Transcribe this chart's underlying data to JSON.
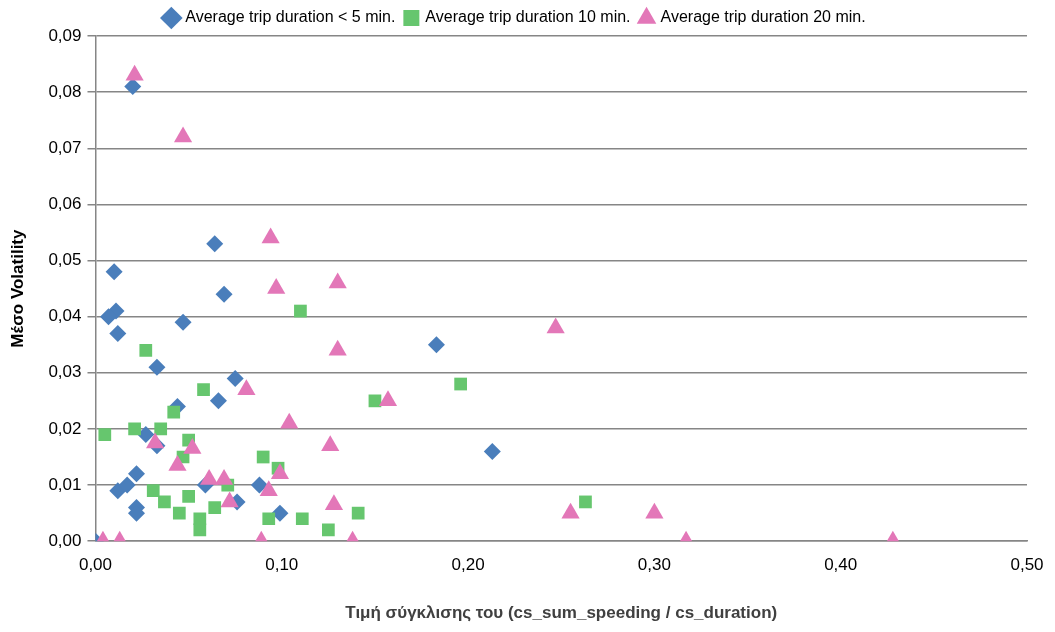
{
  "chart_data": {
    "type": "scatter",
    "xlabel": "Τιμή σύγκλισης του (cs_sum_speeding / cs_duration)",
    "ylabel": "Μέσο Volatility",
    "xlim": [
      0,
      0.5
    ],
    "ylim": [
      0,
      0.09
    ],
    "xticks": [
      {
        "value": 0,
        "label": "0,00"
      },
      {
        "value": 0.1,
        "label": "0,10"
      },
      {
        "value": 0.2,
        "label": "0,20"
      },
      {
        "value": 0.3,
        "label": "0,30"
      },
      {
        "value": 0.4,
        "label": "0,40"
      },
      {
        "value": 0.5,
        "label": "0,50"
      }
    ],
    "yticks": [
      {
        "value": 0,
        "label": "0,00"
      },
      {
        "value": 0.01,
        "label": "0,01"
      },
      {
        "value": 0.02,
        "label": "0,02"
      },
      {
        "value": 0.03,
        "label": "0,03"
      },
      {
        "value": 0.04,
        "label": "0,04"
      },
      {
        "value": 0.05,
        "label": "0,05"
      },
      {
        "value": 0.06,
        "label": "0,06"
      },
      {
        "value": 0.07,
        "label": "0,07"
      },
      {
        "value": 0.08,
        "label": "0,08"
      },
      {
        "value": 0.09,
        "label": "0,09"
      }
    ],
    "grid": "y",
    "legend": "top",
    "series": [
      {
        "name": "Average trip duration < 5 min.",
        "color": "#4a7ebb",
        "marker": "diamond",
        "x": [
          0,
          0.02,
          0.01,
          0.011,
          0.007,
          0.012,
          0.064,
          0.069,
          0.047,
          0.033,
          0.183,
          0.213,
          0.075,
          0.066,
          0.044,
          0.033,
          0.027,
          0.022,
          0.012,
          0.017,
          0.022,
          0.022,
          0.059,
          0.076,
          0.088,
          0.099
        ],
        "values": [
          0,
          0.081,
          0.048,
          0.041,
          0.04,
          0.037,
          0.053,
          0.044,
          0.039,
          0.031,
          0.035,
          0.016,
          0.029,
          0.025,
          0.024,
          0.017,
          0.019,
          0.012,
          0.009,
          0.01,
          0.006,
          0.005,
          0.01,
          0.007,
          0.01,
          0.005
        ]
      },
      {
        "name": "Average trip duration 10 min.",
        "color": "#66c66e",
        "marker": "square",
        "x": [
          0.005,
          0.021,
          0.027,
          0.058,
          0.11,
          0.15,
          0.196,
          0.263,
          0.042,
          0.035,
          0.05,
          0.047,
          0.031,
          0.037,
          0.045,
          0.05,
          0.056,
          0.056,
          0.064,
          0.071,
          0.09,
          0.098,
          0.093,
          0.111,
          0.125,
          0.141
        ],
        "values": [
          0.019,
          0.02,
          0.034,
          0.027,
          0.041,
          0.025,
          0.028,
          0.007,
          0.023,
          0.02,
          0.018,
          0.015,
          0.009,
          0.007,
          0.005,
          0.008,
          0.004,
          0.002,
          0.006,
          0.01,
          0.015,
          0.013,
          0.004,
          0.004,
          0.002,
          0.005
        ]
      },
      {
        "name": "Average trip duration 20 min.",
        "color": "#e377b8",
        "marker": "triangle",
        "x": [
          0.021,
          0.047,
          0.094,
          0.097,
          0.13,
          0.13,
          0.247,
          0.104,
          0.081,
          0.157,
          0.126,
          0.032,
          0.052,
          0.044,
          0.061,
          0.069,
          0.072,
          0.093,
          0.099,
          0.128,
          0.004,
          0.013,
          0.089,
          0.138,
          0.255,
          0.3,
          0.317,
          0.428
        ],
        "values": [
          0.083,
          0.072,
          0.054,
          0.045,
          0.046,
          0.034,
          0.038,
          0.021,
          0.027,
          0.025,
          0.017,
          0.0175,
          0.0165,
          0.0135,
          0.011,
          0.011,
          0.007,
          0.009,
          0.012,
          0.0065,
          0,
          0,
          0,
          0,
          0.005,
          0.005,
          0,
          0
        ]
      }
    ]
  }
}
